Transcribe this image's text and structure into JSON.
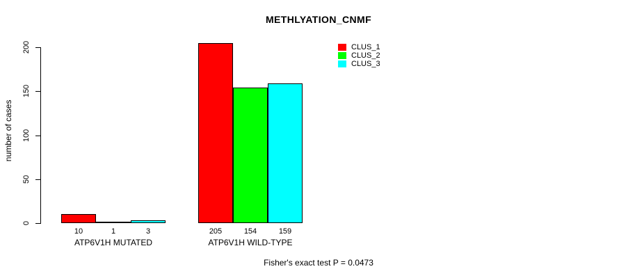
{
  "chart_data": {
    "type": "bar",
    "title": "METHLYATION_CNMF",
    "xlabel": "",
    "ylabel": "number of cases",
    "ylim": [
      0,
      205
    ],
    "yticks": [
      0,
      50,
      100,
      150,
      200
    ],
    "categories": [
      "ATP6V1H MUTATED",
      "ATP6V1H WILD-TYPE"
    ],
    "series": [
      {
        "name": "CLUS_1",
        "color": "#ff0000",
        "values": [
          10,
          205
        ]
      },
      {
        "name": "CLUS_2",
        "color": "#00ff00",
        "values": [
          1,
          154
        ]
      },
      {
        "name": "CLUS_3",
        "color": "#00ffff",
        "values": [
          3,
          159
        ]
      }
    ],
    "bar_value_labels": [
      [
        "10",
        "1",
        "3"
      ],
      [
        "205",
        "154",
        "159"
      ]
    ],
    "annotation": "Fisher's exact test P = 0.0473",
    "legend_position": "top-right",
    "grid": false,
    "axis_color": "#000000",
    "background_color": "#ffffff"
  }
}
